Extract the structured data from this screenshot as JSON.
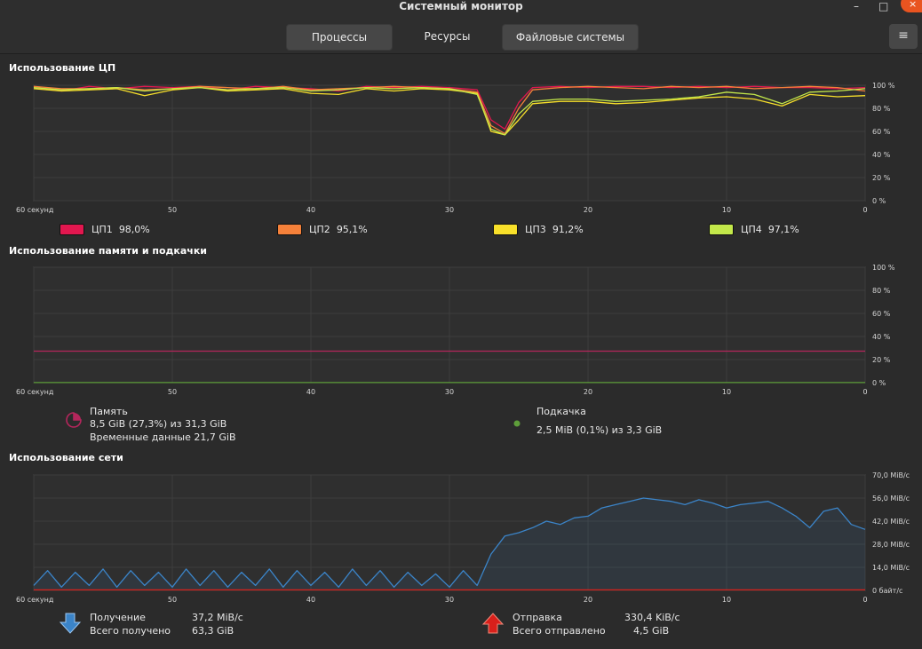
{
  "window": {
    "title": "Системный монитор",
    "minimize_glyph": "–",
    "maximize_glyph": "□",
    "close_glyph": "×"
  },
  "tabs": [
    {
      "label": "Процессы",
      "active": false
    },
    {
      "label": "Ресурсы",
      "active": true
    },
    {
      "label": "Файловые системы",
      "active": false
    }
  ],
  "menu_icon": "≡",
  "cpu": {
    "title": "Использование ЦП",
    "x_ticks": [
      "60 секунд",
      "50",
      "40",
      "30",
      "20",
      "10",
      "0"
    ],
    "y_ticks": [
      "100 %",
      "80 %",
      "60 %",
      "40 %",
      "20 %",
      "0 %"
    ],
    "ylim": [
      0,
      100
    ],
    "legend": [
      {
        "label": "ЦП1",
        "value": "98,0%",
        "color": "#e2174f"
      },
      {
        "label": "ЦП2",
        "value": "95,1%",
        "color": "#f5813a"
      },
      {
        "label": "ЦП3",
        "value": "91,2%",
        "color": "#f8e02a"
      },
      {
        "label": "ЦП4",
        "value": "97,1%",
        "color": "#c3e84a"
      }
    ]
  },
  "memory": {
    "title": "Использование памяти и подкачки",
    "x_ticks": [
      "60 секунд",
      "50",
      "40",
      "30",
      "20",
      "10",
      "0"
    ],
    "y_ticks": [
      "100 %",
      "80 %",
      "60 %",
      "40 %",
      "20 %",
      "0 %"
    ],
    "ylim": [
      0,
      100
    ],
    "mem_label": "Память",
    "mem_value": "8,5 GiB (27,3%) из 31,3 GiB",
    "mem_cache": "Временные данные 21,7 GiB",
    "mem_color": "#b5265c",
    "mem_percent": 27.3,
    "swap_label": "Подкачка",
    "swap_value": "2,5 MiB (0,1%) из 3,3 GiB",
    "swap_color": "#5e9e3a",
    "swap_percent": 0.1
  },
  "network": {
    "title": "Использование сети",
    "x_ticks": [
      "60 секунд",
      "50",
      "40",
      "30",
      "20",
      "10",
      "0"
    ],
    "y_ticks": [
      "70,0 MiB/c",
      "56,0 MiB/c",
      "42,0 MiB/c",
      "28,0 MiB/c",
      "14,0 MiB/c",
      "0 байт/c"
    ],
    "ylim": [
      0,
      70
    ],
    "recv_label": "Получение",
    "recv_value": "37,2 MiB/c",
    "recv_total_label": "Всего получено",
    "recv_total_value": "63,3 GiB",
    "recv_color": "#3b84c8",
    "send_label": "Отправка",
    "send_value": "330,4 KiB/c",
    "send_total_label": "Всего отправлено",
    "send_total_value": "4,5 GiB",
    "send_color": "#d9201b"
  },
  "chart_data": [
    {
      "type": "line",
      "title": "Использование ЦП",
      "xlabel": "",
      "ylabel": "",
      "x": [
        60,
        58,
        56,
        54,
        52,
        50,
        48,
        46,
        44,
        42,
        40,
        38,
        36,
        34,
        32,
        30,
        28,
        27,
        26,
        25,
        24,
        22,
        20,
        18,
        16,
        14,
        12,
        10,
        8,
        6,
        4,
        2,
        0
      ],
      "ylim": [
        0,
        100
      ],
      "series": [
        {
          "name": "ЦП1",
          "values": [
            98,
            95,
            99,
            97,
            99,
            98,
            99,
            96,
            99,
            98,
            97,
            95,
            99,
            98,
            99,
            98,
            96,
            70,
            62,
            85,
            98,
            99,
            98,
            99,
            99,
            98,
            99,
            98,
            99,
            98,
            98,
            97,
            98
          ]
        },
        {
          "name": "ЦП2",
          "values": [
            99,
            97,
            97,
            98,
            96,
            97,
            99,
            98,
            97,
            99,
            96,
            97,
            98,
            99,
            98,
            97,
            94,
            65,
            58,
            80,
            96,
            98,
            99,
            98,
            97,
            99,
            98,
            99,
            97,
            98,
            99,
            98,
            95
          ]
        },
        {
          "name": "ЦП3",
          "values": [
            97,
            95,
            96,
            97,
            91,
            96,
            98,
            95,
            96,
            97,
            93,
            92,
            97,
            95,
            97,
            96,
            93,
            60,
            57,
            70,
            84,
            86,
            86,
            84,
            85,
            87,
            89,
            90,
            88,
            82,
            92,
            90,
            91
          ]
        },
        {
          "name": "ЦП4",
          "values": [
            98,
            96,
            97,
            98,
            95,
            97,
            98,
            96,
            97,
            98,
            95,
            96,
            98,
            97,
            98,
            97,
            92,
            62,
            57,
            75,
            86,
            88,
            88,
            86,
            87,
            88,
            90,
            94,
            92,
            84,
            94,
            95,
            97
          ]
        }
      ]
    },
    {
      "type": "line",
      "title": "Использование памяти и подкачки",
      "xlabel": "",
      "ylabel": "",
      "x": [
        60,
        0
      ],
      "ylim": [
        0,
        100
      ],
      "series": [
        {
          "name": "Память",
          "values": [
            27.3,
            27.3
          ]
        },
        {
          "name": "Подкачка",
          "values": [
            0.1,
            0.1
          ]
        }
      ]
    },
    {
      "type": "line",
      "title": "Использование сети",
      "xlabel": "",
      "ylabel": "",
      "x": [
        60,
        59,
        58,
        57,
        56,
        55,
        54,
        53,
        52,
        51,
        50,
        49,
        48,
        47,
        46,
        45,
        44,
        43,
        42,
        41,
        40,
        39,
        38,
        37,
        36,
        35,
        34,
        33,
        32,
        31,
        30,
        29,
        28,
        27,
        26,
        25,
        24,
        23,
        22,
        21,
        20,
        19,
        18,
        17,
        16,
        15,
        14,
        13,
        12,
        11,
        10,
        9,
        8,
        7,
        6,
        5,
        4,
        3,
        2,
        1,
        0
      ],
      "ylim": [
        0,
        70
      ],
      "series": [
        {
          "name": "Получение",
          "values": [
            3,
            12,
            2,
            11,
            3,
            13,
            2,
            12,
            3,
            11,
            2,
            13,
            3,
            12,
            2,
            11,
            3,
            13,
            2,
            12,
            3,
            11,
            2,
            13,
            3,
            12,
            2,
            11,
            3,
            10,
            2,
            12,
            3,
            22,
            33,
            35,
            38,
            42,
            40,
            44,
            45,
            50,
            52,
            54,
            56,
            55,
            54,
            52,
            55,
            53,
            50,
            52,
            53,
            54,
            50,
            45,
            38,
            48,
            50,
            40,
            37
          ]
        },
        {
          "name": "Отправка",
          "values": [
            0.3,
            0.3,
            0.3,
            0.3,
            0.3,
            0.3,
            0.3,
            0.3,
            0.3,
            0.3,
            0.3,
            0.3,
            0.3,
            0.3,
            0.3,
            0.3,
            0.3,
            0.3,
            0.3,
            0.3,
            0.3,
            0.3,
            0.3,
            0.3,
            0.3,
            0.3,
            0.3,
            0.3,
            0.3,
            0.3,
            0.3,
            0.3,
            0.3,
            0.3,
            0.3,
            0.3,
            0.3,
            0.3,
            0.3,
            0.3,
            0.3,
            0.3,
            0.3,
            0.3,
            0.3,
            0.3,
            0.3,
            0.3,
            0.3,
            0.3,
            0.3,
            0.3,
            0.3,
            0.3,
            0.3,
            0.3,
            0.3,
            0.3,
            0.3,
            0.3,
            0.3
          ]
        }
      ]
    }
  ]
}
